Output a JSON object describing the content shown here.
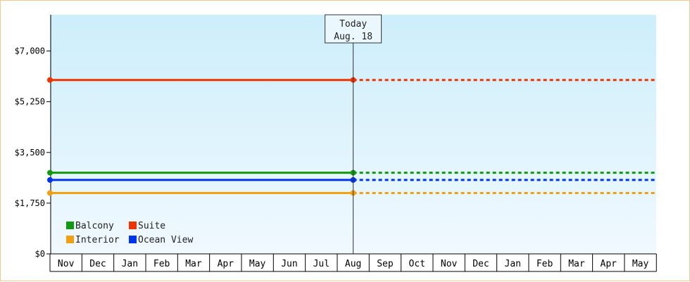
{
  "chart_data": {
    "type": "line",
    "y_unit": "$",
    "ylim": [
      0,
      8250
    ],
    "y_ticks": [
      {
        "value": 0,
        "label": "$0"
      },
      {
        "value": 1750,
        "label": "$1,750"
      },
      {
        "value": 3500,
        "label": "$3,500"
      },
      {
        "value": 5250,
        "label": "$5,250"
      },
      {
        "value": 7000,
        "label": "$7,000"
      }
    ],
    "months": [
      "Nov",
      "Dec",
      "Jan",
      "Feb",
      "Mar",
      "Apr",
      "May",
      "Jun",
      "Jul",
      "Aug",
      "Sep",
      "Oct",
      "Nov",
      "Dec",
      "Jan",
      "Feb",
      "Mar",
      "Apr",
      "May"
    ],
    "today": {
      "label_line1": "Today",
      "label_line2": "Aug. 18",
      "month_index": 9
    },
    "grid": false,
    "legend_position": "bottom-left",
    "series": [
      {
        "name": "Balcony",
        "color": "#119911",
        "value": 2800
      },
      {
        "name": "Suite",
        "color": "#ee3300",
        "value": 6000
      },
      {
        "name": "Interior",
        "color": "#f0a010",
        "value": 2100
      },
      {
        "name": "Ocean View",
        "color": "#0033ee",
        "value": 2550
      }
    ],
    "solid_until": "today",
    "dashed_after": "today"
  }
}
